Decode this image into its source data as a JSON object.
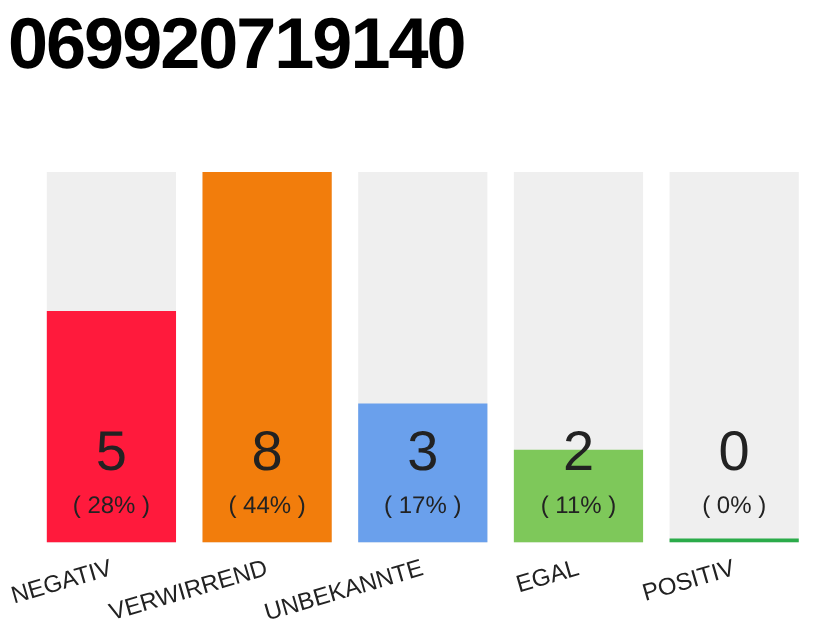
{
  "chart_data": {
    "type": "bar",
    "title": "069920719140",
    "categories": [
      "NEGATIV",
      "VERWIRREND",
      "UNBEKANNTE",
      "EGAL",
      "POSITIV"
    ],
    "values": [
      5,
      8,
      3,
      2,
      0
    ],
    "colors": [
      "#ff1a3c",
      "#f27d0c",
      "#6aa0ec",
      "#7ec85a",
      "#2bab4a"
    ],
    "value_labels": [
      "5\n( 28% )",
      "8\n( 44% )",
      "3\n( 17% )",
      "2\n( 11% )",
      "0\n( 0% )"
    ],
    "grid": false,
    "legend": false
  }
}
